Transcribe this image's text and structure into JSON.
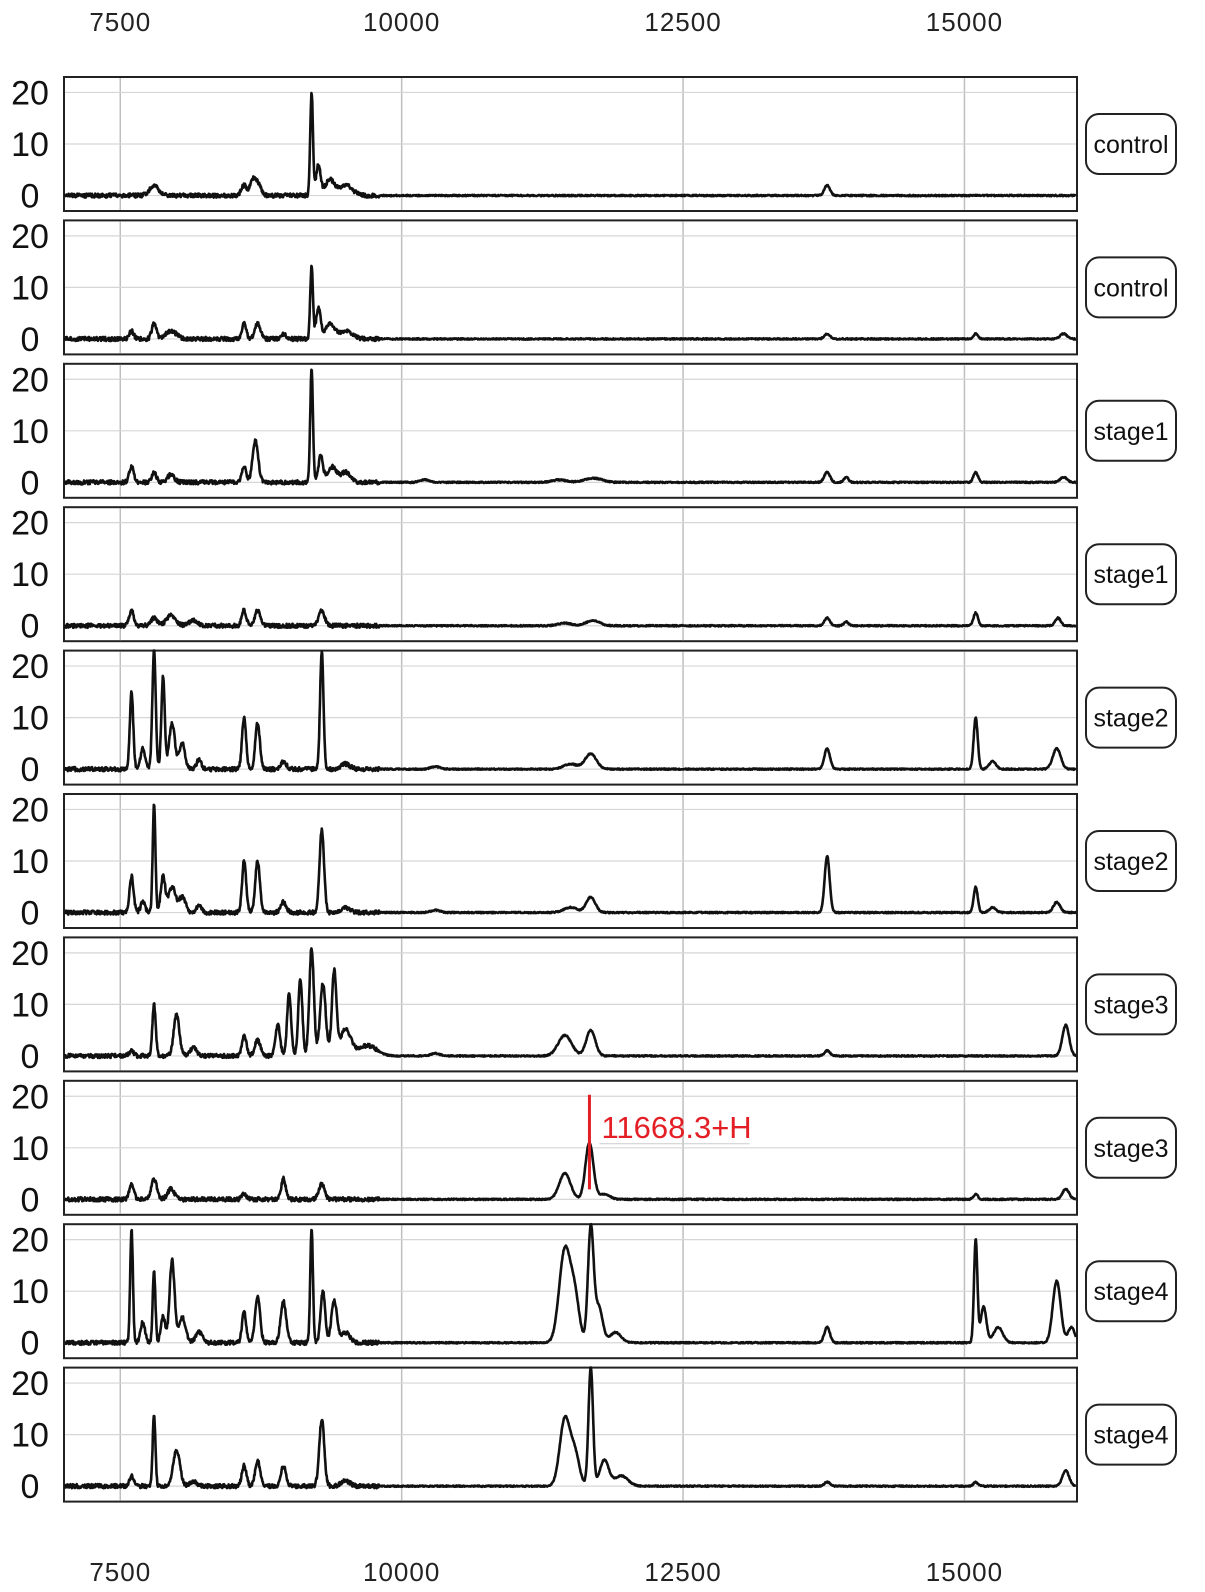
{
  "chart_data": {
    "type": "line",
    "title": "",
    "xlabel": "",
    "ylabel": "",
    "x_ticks": [
      "7500",
      "10000",
      "12500",
      "15000"
    ],
    "x_tick_values": [
      7500,
      10000,
      12500,
      15000
    ],
    "xlim": [
      7000,
      16000
    ],
    "y_ticks": [
      "20",
      "10",
      "0"
    ],
    "y_tick_values": [
      20,
      10,
      0
    ],
    "ylim": [
      -3,
      23
    ],
    "grid": true,
    "line_color": "#111111",
    "annotation": {
      "lane_index": 7,
      "x": 11668.3,
      "y": 12,
      "text": "11668.3+H",
      "color": "#e31e24"
    },
    "series": [
      {
        "name": "control",
        "peaks": [
          [
            7800,
            2,
            40
          ],
          [
            8600,
            2,
            25
          ],
          [
            8680,
            3,
            25
          ],
          [
            8730,
            2,
            25
          ],
          [
            9200,
            20,
            12
          ],
          [
            9260,
            6,
            20
          ],
          [
            9360,
            3,
            40
          ],
          [
            9500,
            2,
            60
          ],
          [
            13780,
            2,
            25
          ]
        ]
      },
      {
        "name": "control",
        "peaks": [
          [
            7600,
            1.5,
            20
          ],
          [
            7800,
            3,
            20
          ],
          [
            7950,
            1.5,
            50
          ],
          [
            8600,
            3,
            20
          ],
          [
            8720,
            3,
            25
          ],
          [
            8950,
            1,
            25
          ],
          [
            9200,
            14,
            12
          ],
          [
            9260,
            6,
            20
          ],
          [
            9360,
            3,
            40
          ],
          [
            9500,
            1.5,
            60
          ],
          [
            13780,
            1,
            25
          ],
          [
            15100,
            1,
            20
          ],
          [
            15880,
            1,
            30
          ]
        ]
      },
      {
        "name": "stage1",
        "peaks": [
          [
            7600,
            3,
            20
          ],
          [
            7800,
            2,
            20
          ],
          [
            7950,
            1.5,
            30
          ],
          [
            8600,
            3,
            20
          ],
          [
            8700,
            8,
            25
          ],
          [
            9200,
            22,
            12
          ],
          [
            9280,
            5,
            20
          ],
          [
            9380,
            3,
            40
          ],
          [
            9500,
            2,
            40
          ],
          [
            10200,
            0.5,
            40
          ],
          [
            11400,
            0.5,
            60
          ],
          [
            11700,
            0.8,
            80
          ],
          [
            13780,
            2,
            25
          ],
          [
            13950,
            1,
            20
          ],
          [
            15100,
            2,
            20
          ],
          [
            15880,
            1,
            30
          ]
        ]
      },
      {
        "name": "stage1",
        "peaks": [
          [
            7600,
            3,
            20
          ],
          [
            7800,
            1.5,
            30
          ],
          [
            7950,
            2,
            40
          ],
          [
            8150,
            1,
            40
          ],
          [
            8600,
            3,
            20
          ],
          [
            8720,
            3,
            25
          ],
          [
            9290,
            3,
            25
          ],
          [
            11450,
            0.5,
            60
          ],
          [
            11700,
            1,
            60
          ],
          [
            13780,
            1.5,
            25
          ],
          [
            13950,
            0.8,
            20
          ],
          [
            15100,
            2.5,
            20
          ],
          [
            15830,
            1.5,
            25
          ]
        ]
      },
      {
        "name": "stage2",
        "peaks": [
          [
            7600,
            15,
            15
          ],
          [
            7700,
            4,
            20
          ],
          [
            7800,
            23,
            15
          ],
          [
            7880,
            18,
            15
          ],
          [
            7960,
            9,
            25
          ],
          [
            8050,
            5,
            25
          ],
          [
            8200,
            2,
            20
          ],
          [
            8600,
            10,
            18
          ],
          [
            8720,
            9,
            20
          ],
          [
            8950,
            1.5,
            25
          ],
          [
            9290,
            23,
            15
          ],
          [
            9500,
            1,
            40
          ],
          [
            10300,
            0.5,
            40
          ],
          [
            11500,
            1,
            60
          ],
          [
            11680,
            3,
            50
          ],
          [
            13780,
            4,
            25
          ],
          [
            15100,
            10,
            18
          ],
          [
            15250,
            1.5,
            30
          ],
          [
            15820,
            4,
            35
          ]
        ]
      },
      {
        "name": "stage2",
        "peaks": [
          [
            7600,
            7,
            18
          ],
          [
            7700,
            2,
            20
          ],
          [
            7800,
            21,
            12
          ],
          [
            7880,
            7,
            20
          ],
          [
            7960,
            5,
            30
          ],
          [
            8050,
            3,
            30
          ],
          [
            8200,
            1.5,
            20
          ],
          [
            8600,
            10,
            18
          ],
          [
            8720,
            10,
            20
          ],
          [
            8950,
            2,
            25
          ],
          [
            9290,
            16,
            20
          ],
          [
            9500,
            1,
            40
          ],
          [
            10300,
            0.5,
            40
          ],
          [
            11500,
            1,
            60
          ],
          [
            11680,
            3,
            40
          ],
          [
            13780,
            11,
            22
          ],
          [
            15100,
            5,
            18
          ],
          [
            15250,
            1,
            30
          ],
          [
            15820,
            2,
            30
          ]
        ]
      },
      {
        "name": "stage3",
        "peaks": [
          [
            7600,
            1,
            20
          ],
          [
            7800,
            10,
            15
          ],
          [
            8000,
            8,
            25
          ],
          [
            8150,
            1.5,
            30
          ],
          [
            8600,
            4,
            20
          ],
          [
            8720,
            3,
            25
          ],
          [
            8900,
            6,
            20
          ],
          [
            9000,
            12,
            18
          ],
          [
            9100,
            15,
            18
          ],
          [
            9200,
            21,
            20
          ],
          [
            9300,
            14,
            25
          ],
          [
            9400,
            16,
            20
          ],
          [
            9500,
            5,
            50
          ],
          [
            9700,
            2,
            80
          ],
          [
            10300,
            0.5,
            40
          ],
          [
            11450,
            4,
            60
          ],
          [
            11680,
            5,
            40
          ],
          [
            13780,
            1,
            25
          ],
          [
            15900,
            6,
            30
          ]
        ]
      },
      {
        "name": "stage3",
        "peaks": [
          [
            7600,
            3,
            20
          ],
          [
            7800,
            4,
            25
          ],
          [
            7950,
            2,
            30
          ],
          [
            8600,
            1,
            20
          ],
          [
            8950,
            4,
            20
          ],
          [
            9290,
            3,
            25
          ],
          [
            11450,
            5,
            50
          ],
          [
            11668,
            11,
            35
          ],
          [
            11800,
            1,
            50
          ],
          [
            15100,
            1,
            20
          ],
          [
            15900,
            2,
            30
          ]
        ]
      },
      {
        "name": "stage4",
        "peaks": [
          [
            7600,
            22,
            12
          ],
          [
            7700,
            4,
            20
          ],
          [
            7800,
            14,
            12
          ],
          [
            7880,
            5,
            20
          ],
          [
            7960,
            16,
            22
          ],
          [
            8050,
            5,
            30
          ],
          [
            8200,
            2,
            30
          ],
          [
            8600,
            6,
            18
          ],
          [
            8720,
            9,
            22
          ],
          [
            8950,
            8,
            25
          ],
          [
            9200,
            22,
            12
          ],
          [
            9300,
            10,
            20
          ],
          [
            9400,
            8,
            25
          ],
          [
            9500,
            2,
            40
          ],
          [
            11450,
            18,
            50
          ],
          [
            11540,
            8,
            40
          ],
          [
            11680,
            22,
            25
          ],
          [
            11750,
            7,
            35
          ],
          [
            11900,
            2,
            50
          ],
          [
            13780,
            3,
            25
          ],
          [
            15100,
            20,
            15
          ],
          [
            15170,
            7,
            25
          ],
          [
            15300,
            3,
            40
          ],
          [
            15820,
            12,
            35
          ],
          [
            15950,
            3,
            30
          ]
        ]
      },
      {
        "name": "stage4",
        "peaks": [
          [
            7600,
            2,
            20
          ],
          [
            7800,
            14,
            12
          ],
          [
            8000,
            7,
            30
          ],
          [
            8150,
            1,
            30
          ],
          [
            8600,
            4,
            20
          ],
          [
            8720,
            5,
            22
          ],
          [
            8950,
            4,
            22
          ],
          [
            9290,
            13,
            22
          ],
          [
            9500,
            1,
            40
          ],
          [
            11450,
            13,
            45
          ],
          [
            11540,
            6,
            40
          ],
          [
            11680,
            23,
            20
          ],
          [
            11800,
            5,
            40
          ],
          [
            11950,
            2,
            60
          ],
          [
            13780,
            0.8,
            25
          ],
          [
            15100,
            0.8,
            20
          ],
          [
            15900,
            3,
            30
          ]
        ]
      }
    ]
  }
}
